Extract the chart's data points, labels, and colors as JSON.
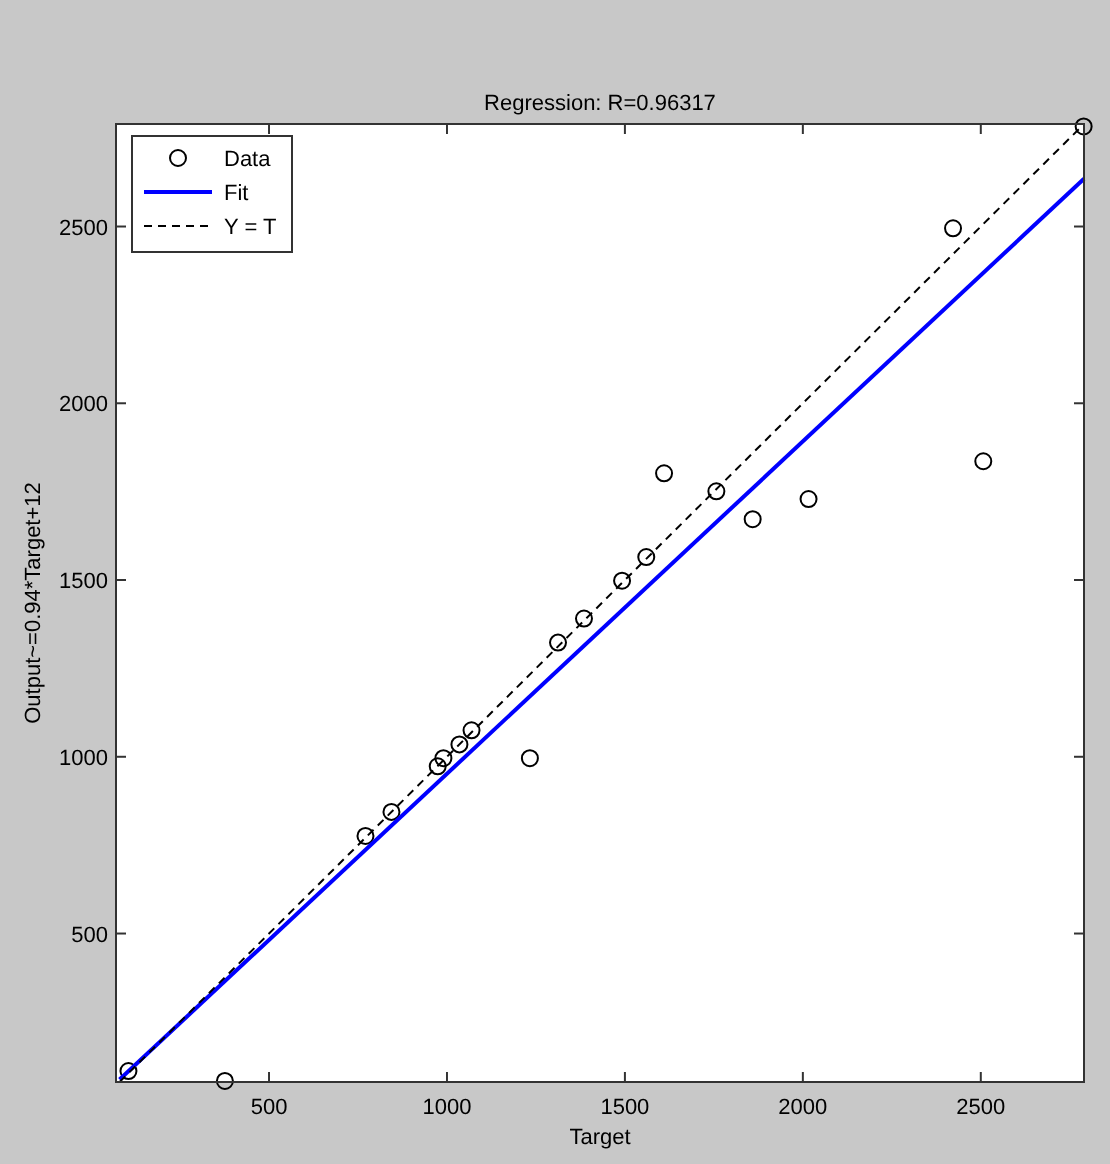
{
  "chart_data": {
    "type": "scatter",
    "title": "Regression: R=0.96317",
    "xlabel": "Target",
    "ylabel": "Output~=0.94*Target+12",
    "xlim": [
      70,
      2790
    ],
    "ylim": [
      80,
      2790
    ],
    "xticks": [
      500,
      1000,
      1500,
      2000,
      2500
    ],
    "yticks": [
      500,
      1000,
      1500,
      2000,
      2500
    ],
    "grid": false,
    "legend": "top left",
    "series": [
      {
        "name": "Data",
        "type": "scatter",
        "marker": "circle",
        "color": "#000000",
        "x": [
          105,
          376,
          771,
          844,
          974,
          990,
          1035,
          1069,
          1233,
          1312,
          1385,
          1492,
          1560,
          1610,
          1757,
          1859,
          2016,
          2422,
          2507,
          2789
        ],
        "values": [
          111,
          83,
          776,
          844,
          973,
          996,
          1035,
          1075,
          996,
          1323,
          1391,
          1498,
          1565,
          1802,
          1751,
          1672,
          1729,
          2495,
          1836,
          2783
        ]
      },
      {
        "name": "Fit",
        "type": "line",
        "marker": "none",
        "line_style": "solid",
        "color": "#0000ff",
        "x": [
          80,
          2790
        ],
        "values": [
          87,
          2635
        ]
      },
      {
        "name": "Y = T",
        "type": "line",
        "marker": "none",
        "line_style": "dashed",
        "color": "#000000",
        "x": [
          80,
          2790
        ],
        "values": [
          80,
          2790
        ]
      }
    ]
  }
}
